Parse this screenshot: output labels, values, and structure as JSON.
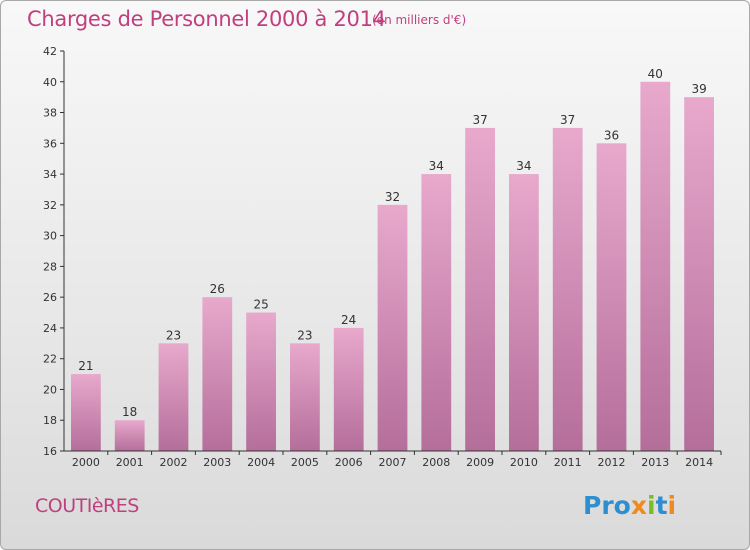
{
  "title": "Charges de Personnel 2000 à 2014",
  "subtitle": "(en milliers d'€)",
  "commune": "COUTIèRES",
  "logo": "Proxiti",
  "colors": {
    "text_accent": "#c0407f",
    "bar_top": "#e8a9cd",
    "bar_bottom": "#b46e9a",
    "logo_blue": "#2e8fd0",
    "logo_orange": "#f08a1c",
    "logo_green": "#7cbc2a"
  },
  "chart_data": {
    "type": "bar",
    "categories": [
      "2000",
      "2001",
      "2002",
      "2003",
      "2004",
      "2005",
      "2006",
      "2007",
      "2008",
      "2009",
      "2010",
      "2011",
      "2012",
      "2013",
      "2014"
    ],
    "values": [
      21,
      18,
      23,
      26,
      25,
      23,
      24,
      32,
      34,
      37,
      34,
      37,
      36,
      40,
      39
    ],
    "title": "Charges de Personnel 2000 à 2014",
    "subtitle": "(en milliers d'€)",
    "xlabel": "",
    "ylabel": "",
    "ylim": [
      16,
      42
    ],
    "yticks": [
      16,
      18,
      20,
      22,
      24,
      26,
      28,
      30,
      32,
      34,
      36,
      38,
      40,
      42
    ],
    "grid": false
  }
}
